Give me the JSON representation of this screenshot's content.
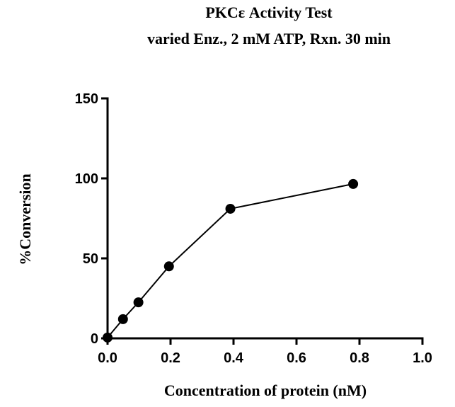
{
  "chart_data": {
    "type": "line",
    "title": "PKCε Activity Test",
    "subtitle": "varied Enz., 2 mM ATP, Rxn. 30 min",
    "xlabel": "Concentration of protein (nM)",
    "ylabel": "%Conversion",
    "xlim": [
      0.0,
      1.0
    ],
    "ylim": [
      0,
      150
    ],
    "xticks": [
      0.0,
      0.2,
      0.4,
      0.6,
      0.8,
      1.0
    ],
    "xtick_labels": [
      "0.0",
      "0.2",
      "0.4",
      "0.6",
      "0.8",
      "1.0"
    ],
    "yticks": [
      0,
      50,
      100,
      150
    ],
    "ytick_labels": [
      "0",
      "50",
      "100",
      "150"
    ],
    "grid": false,
    "legend": "none",
    "line_color": "#000000",
    "marker_color": "#000000",
    "series": [
      {
        "x": [
          0.0,
          0.049,
          0.098,
          0.195,
          0.39,
          0.78
        ],
        "y": [
          0.5,
          12,
          22.5,
          45,
          81,
          96.5
        ]
      }
    ]
  }
}
